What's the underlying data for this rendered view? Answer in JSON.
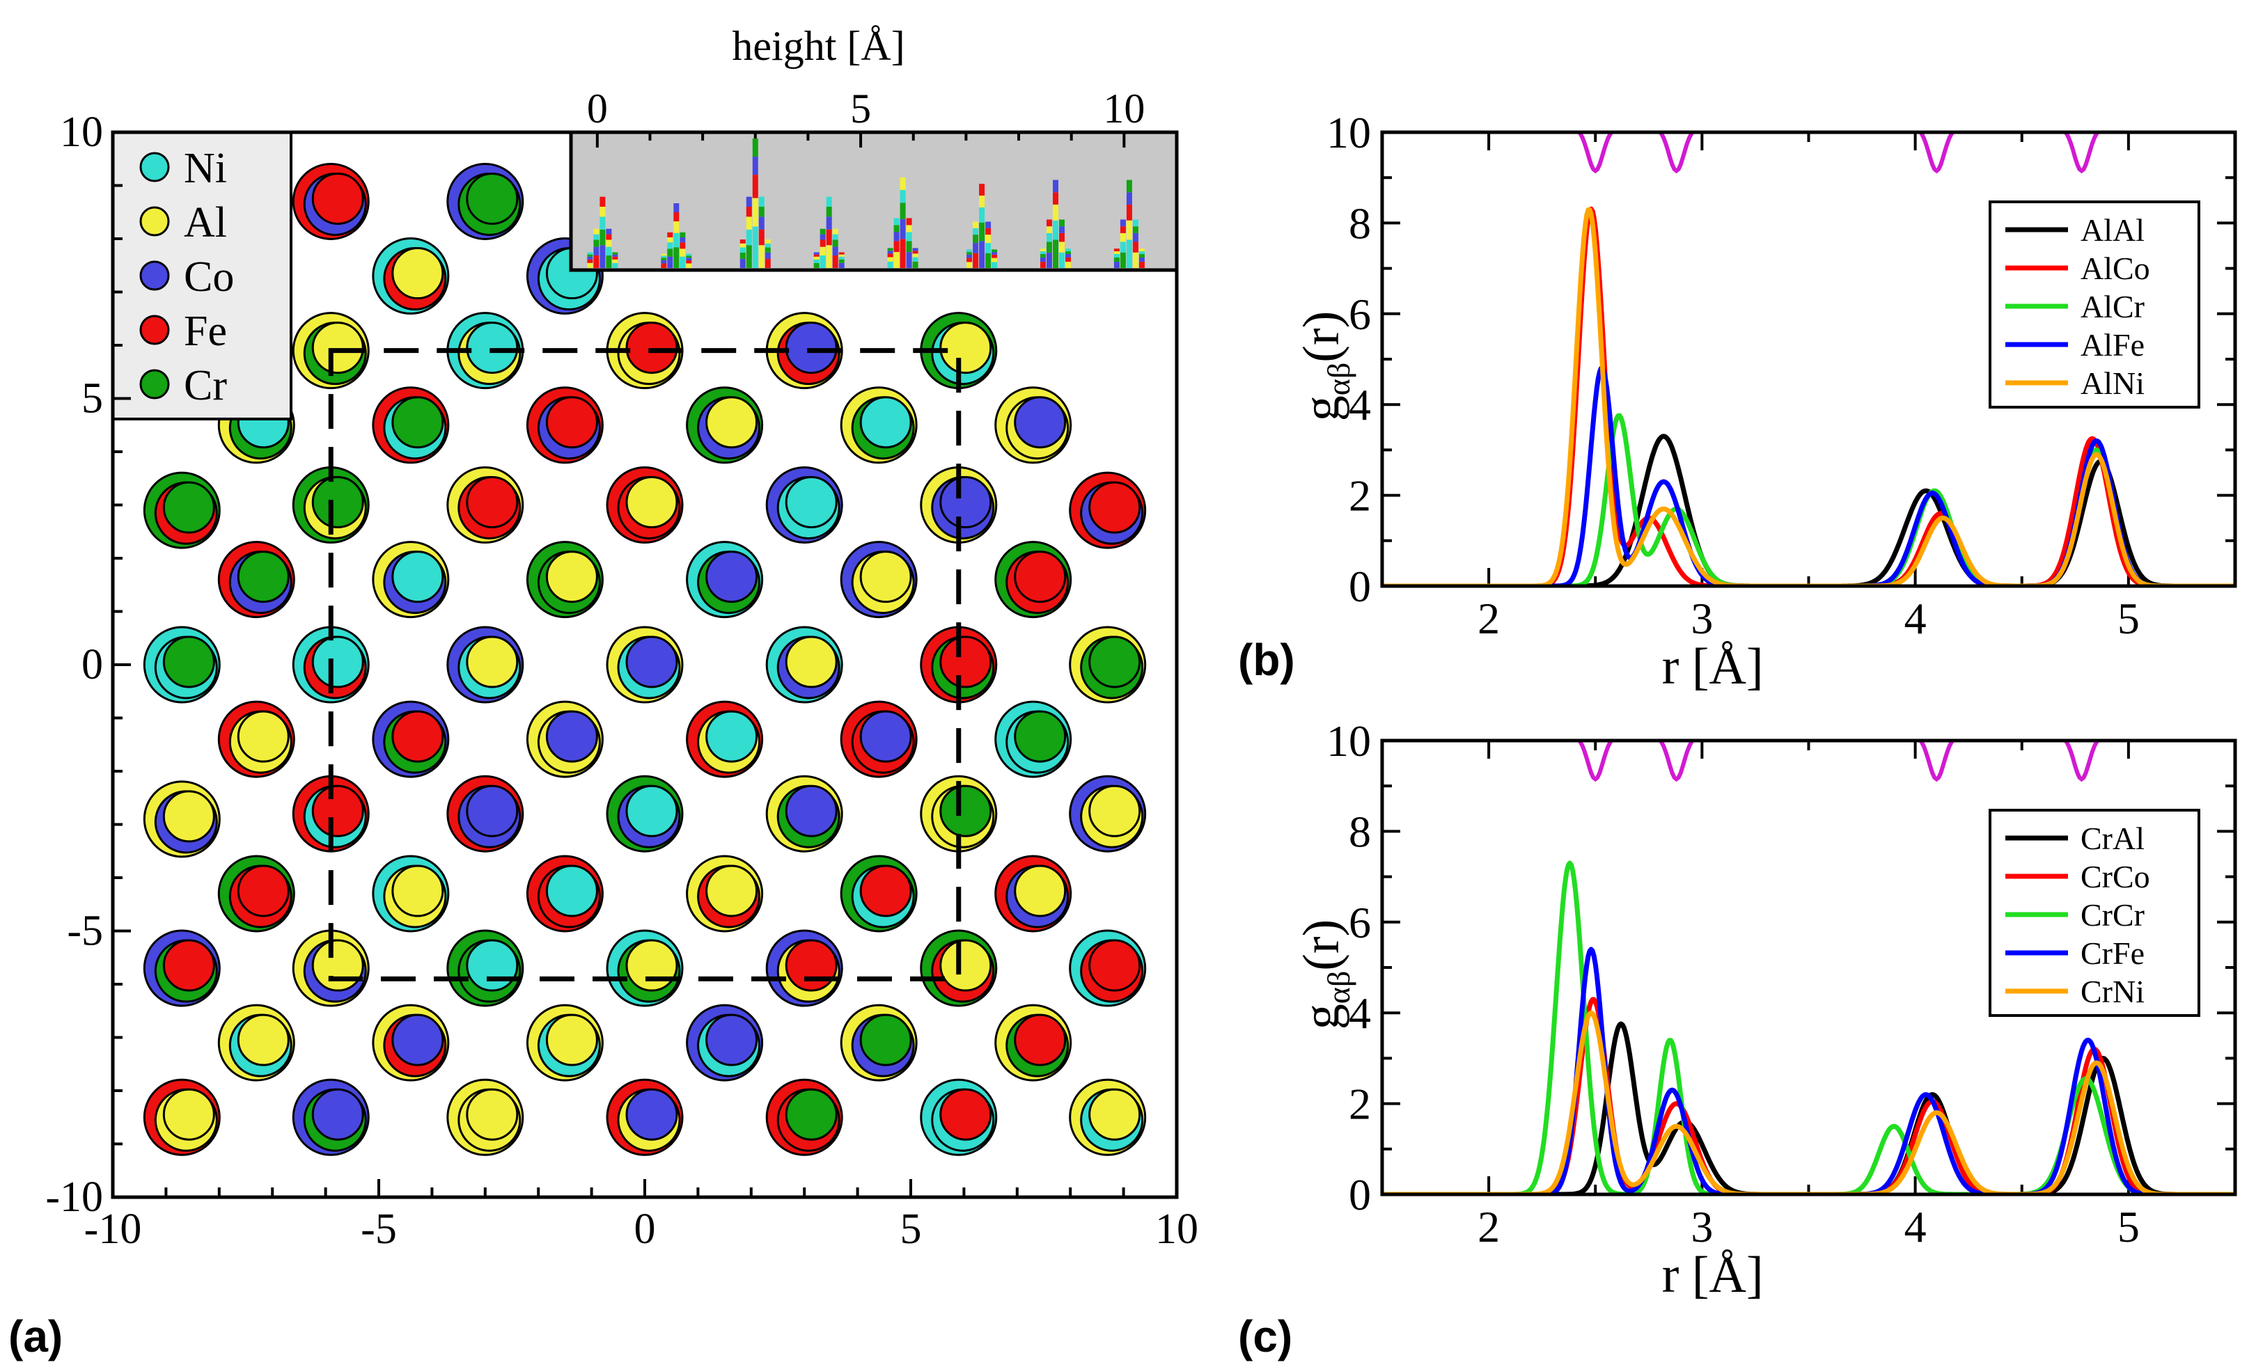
{
  "panel_labels": {
    "a": "(a)",
    "b": "(b)",
    "c": "(c)"
  },
  "colors": {
    "Ni": "#33ddd0",
    "Al": "#f2ef3c",
    "Co": "#4848e0",
    "Fe": "#ee1111",
    "Cr": "#13a313",
    "inset_bg": "#c8c8c8",
    "magenta": "#d21ad2",
    "AlAl": "#000000",
    "AlCo": "#ff0000",
    "AlCr": "#22dd22",
    "AlFe": "#0000ff",
    "AlNi": "#ffa500"
  },
  "chart_data": [
    {
      "id": "a",
      "type": "scatter",
      "title": "",
      "xlabel": "",
      "ylabel": "",
      "xlim": [
        -10,
        10
      ],
      "ylim": [
        -10,
        10
      ],
      "xticks": [
        "-10",
        "-5",
        "0",
        "5",
        "10"
      ],
      "yticks": [
        "-10",
        "-5",
        "0",
        "5",
        "10"
      ],
      "legend": [
        "Ni",
        "Al",
        "Co",
        "Fe",
        "Cr"
      ],
      "columns": [
        {
          "x": -8.7,
          "y": [
            0,
            -2.9,
            -5.7,
            -8.5,
            2.9
          ]
        },
        {
          "x": -7.3,
          "y": [
            -1.4,
            -4.3,
            -7.1,
            1.6,
            4.5
          ]
        },
        {
          "x": -5.9,
          "y": [
            8.7,
            5.9,
            3.0,
            0.0,
            -2.8,
            -5.7,
            -8.5
          ]
        },
        {
          "x": -4.4,
          "y": [
            7.3,
            4.5,
            1.6,
            -1.4,
            -4.3,
            -7.1
          ]
        },
        {
          "x": -3.0,
          "y": [
            8.7,
            5.9,
            3.0,
            0.0,
            -2.8,
            -5.7,
            -8.5
          ]
        },
        {
          "x": -1.5,
          "y": [
            7.3,
            4.5,
            1.6,
            -1.4,
            -4.3,
            -7.1
          ]
        },
        {
          "x": 0.0,
          "y": [
            5.9,
            3.0,
            0.0,
            -2.8,
            -5.7,
            -8.5
          ]
        },
        {
          "x": 1.5,
          "y": [
            4.5,
            1.6,
            -1.4,
            -4.3,
            -7.1
          ]
        },
        {
          "x": 3.0,
          "y": [
            5.9,
            3.0,
            0.0,
            -2.8,
            -5.7,
            -8.5
          ]
        },
        {
          "x": 4.4,
          "y": [
            4.5,
            1.6,
            -1.4,
            -4.3,
            -7.1
          ]
        },
        {
          "x": 5.9,
          "y": [
            5.9,
            3.0,
            0.0,
            -2.8,
            -5.7,
            -8.5
          ]
        },
        {
          "x": 7.3,
          "y": [
            4.5,
            1.6,
            -1.4,
            -4.3,
            -7.1
          ]
        },
        {
          "x": 8.7,
          "y": [
            2.9,
            0.0,
            -2.8,
            -5.7,
            -8.5
          ]
        }
      ],
      "atom_types": [
        "Ni",
        "Al",
        "Co",
        "Fe",
        "Cr",
        "Al",
        "Fe",
        "Al",
        "Cr",
        "Ni",
        "Fe",
        "Al",
        "Co"
      ],
      "dashed_box": {
        "x": [
          -5.9,
          5.9
        ],
        "y": [
          -5.9,
          5.9
        ]
      },
      "inset": {
        "xlabel": "height [Å]",
        "xlim": [
          -0.5,
          11
        ],
        "xticks": [
          "0",
          "5",
          "10"
        ],
        "peak_positions": [
          0.1,
          1.5,
          3.0,
          4.4,
          5.8,
          7.3,
          8.7,
          10.1
        ],
        "peak_heights": [
          0.55,
          0.5,
          1.0,
          0.55,
          0.7,
          0.65,
          0.68,
          0.68
        ]
      }
    },
    {
      "id": "b",
      "type": "line",
      "xlabel": "r  [Å]",
      "ylabel": "g",
      "ylabel_sub": "αβ",
      "ylabel_tail": "(r)",
      "xlim": [
        1.5,
        5.5
      ],
      "ylim": [
        0,
        10
      ],
      "xticks": [
        "2",
        "3",
        "4",
        "5"
      ],
      "yticks": [
        "0",
        "2",
        "4",
        "6",
        "8",
        "10"
      ],
      "legend_position": "top-right",
      "series": [
        {
          "name": "AlAl",
          "color": "#000000",
          "peaks": [
            [
              2.82,
              3.3,
              0.14
            ],
            [
              4.05,
              2.1,
              0.14
            ],
            [
              4.87,
              2.75,
              0.12
            ]
          ]
        },
        {
          "name": "AlCo",
          "color": "#ff0000",
          "peaks": [
            [
              2.48,
              8.3,
              0.085
            ],
            [
              2.75,
              1.5,
              0.12
            ],
            [
              4.12,
              1.6,
              0.12
            ],
            [
              4.83,
              3.25,
              0.11
            ]
          ]
        },
        {
          "name": "AlCr",
          "color": "#22dd22",
          "peaks": [
            [
              2.61,
              3.75,
              0.08
            ],
            [
              2.88,
              1.7,
              0.12
            ],
            [
              4.09,
              2.1,
              0.12
            ],
            [
              4.85,
              3.0,
              0.11
            ]
          ]
        },
        {
          "name": "AlFe",
          "color": "#0000ff",
          "peaks": [
            [
              2.53,
              4.8,
              0.075
            ],
            [
              2.82,
              2.3,
              0.12
            ],
            [
              4.08,
              2.05,
              0.12
            ],
            [
              4.85,
              3.2,
              0.11
            ]
          ]
        },
        {
          "name": "AlNi",
          "color": "#ffa500",
          "peaks": [
            [
              2.47,
              8.3,
              0.085
            ],
            [
              2.82,
              1.7,
              0.14
            ],
            [
              4.13,
              1.5,
              0.12
            ],
            [
              4.85,
              2.9,
              0.11
            ]
          ]
        }
      ],
      "magenta_dips": [
        2.5,
        2.88,
        4.1,
        4.78
      ]
    },
    {
      "id": "c",
      "type": "line",
      "xlabel": "r  [Å]",
      "ylabel": "g",
      "ylabel_sub": "αβ",
      "ylabel_tail": "(r)",
      "xlim": [
        1.5,
        5.5
      ],
      "ylim": [
        0,
        10
      ],
      "xticks": [
        "2",
        "3",
        "4",
        "5"
      ],
      "yticks": [
        "0",
        "2",
        "4",
        "6",
        "8",
        "10"
      ],
      "legend_position": "top-right",
      "series": [
        {
          "name": "CrAl",
          "color": "#000000",
          "peaks": [
            [
              2.62,
              3.75,
              0.09
            ],
            [
              2.92,
              1.6,
              0.13
            ],
            [
              4.08,
              2.2,
              0.12
            ],
            [
              4.88,
              3.0,
              0.12
            ]
          ]
        },
        {
          "name": "CrCo",
          "color": "#ff0000",
          "peaks": [
            [
              2.49,
              4.3,
              0.09
            ],
            [
              2.88,
              2.0,
              0.12
            ],
            [
              4.08,
              2.05,
              0.12
            ],
            [
              4.84,
              3.2,
              0.11
            ]
          ]
        },
        {
          "name": "CrCr",
          "color": "#22dd22",
          "peaks": [
            [
              2.38,
              7.3,
              0.09
            ],
            [
              2.85,
              3.4,
              0.075
            ],
            [
              3.9,
              1.5,
              0.1
            ],
            [
              4.8,
              2.55,
              0.12
            ]
          ]
        },
        {
          "name": "CrFe",
          "color": "#0000ff",
          "peaks": [
            [
              2.48,
              5.4,
              0.08
            ],
            [
              2.86,
              2.3,
              0.1
            ],
            [
              4.05,
              2.2,
              0.12
            ],
            [
              4.81,
              3.4,
              0.11
            ]
          ]
        },
        {
          "name": "CrNi",
          "color": "#ffa500",
          "peaks": [
            [
              2.48,
              4.0,
              0.1
            ],
            [
              2.88,
              1.5,
              0.13
            ],
            [
              4.1,
              1.8,
              0.13
            ],
            [
              4.85,
              2.9,
              0.12
            ]
          ]
        }
      ],
      "magenta_dips": [
        2.5,
        2.88,
        4.1,
        4.78
      ]
    }
  ]
}
